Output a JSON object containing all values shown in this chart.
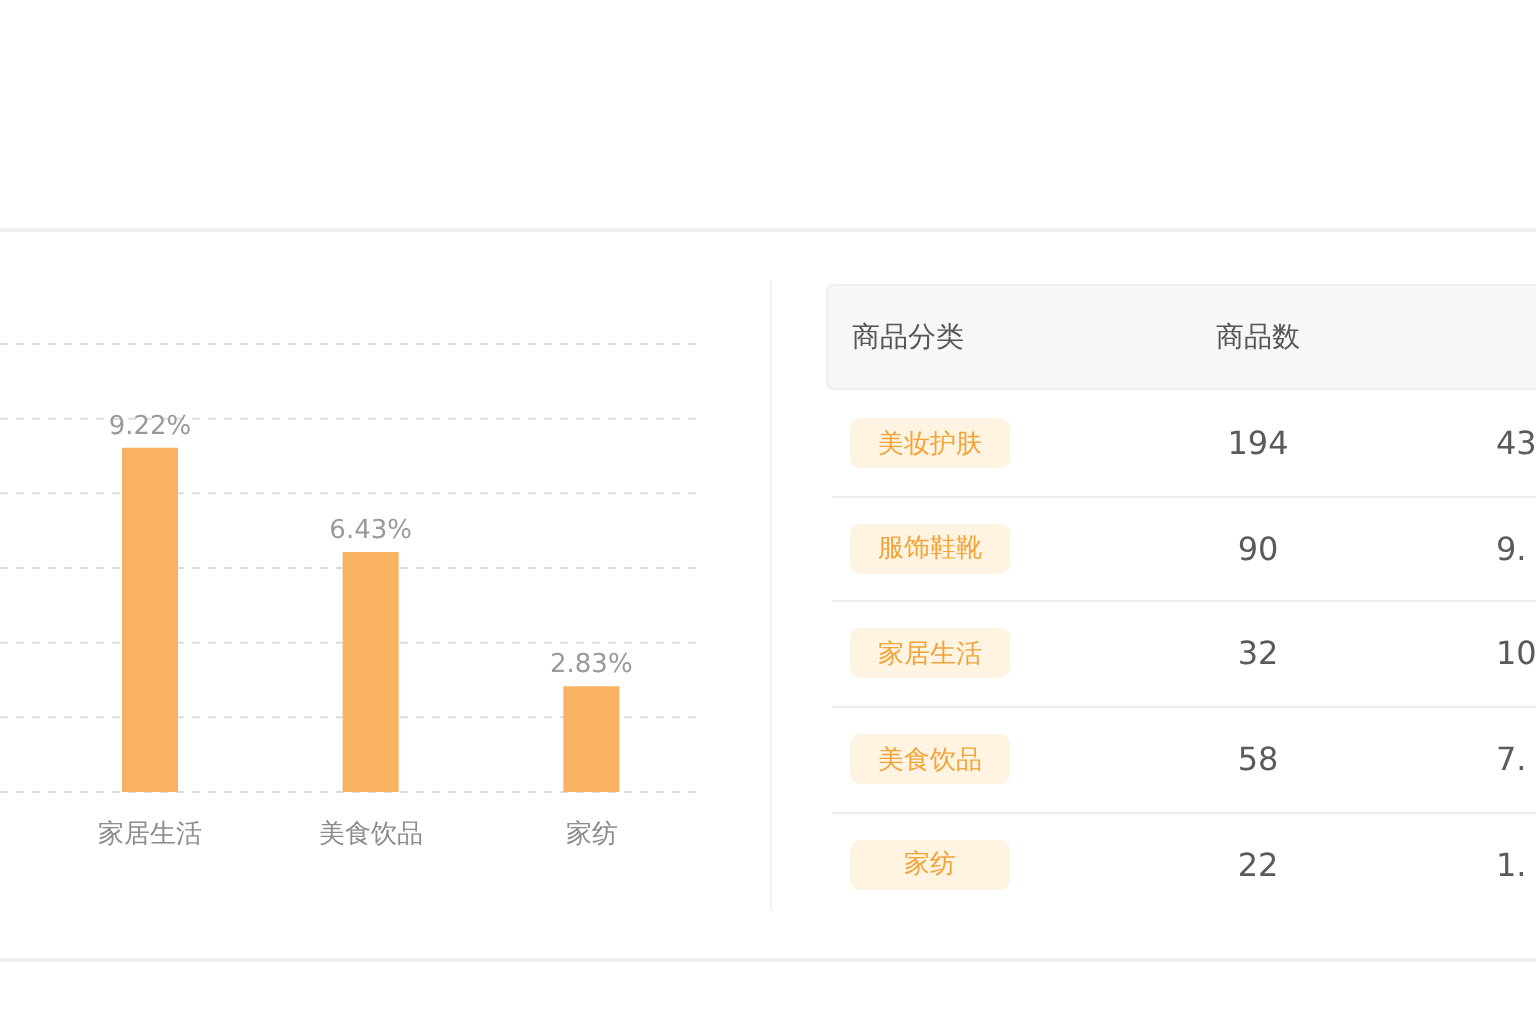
{
  "chart_data": [
    {
      "type": "bar",
      "categories": [
        "家居生活",
        "美食饮品",
        "家纺"
      ],
      "values": [
        9.22,
        6.43,
        2.83
      ],
      "value_labels": [
        "9.22%",
        "6.43%",
        "2.83%"
      ],
      "color": "#f9b162",
      "grid": "y",
      "tick_labels": "x"
    },
    {
      "type": "other",
      "ylabel": "商品分类",
      "categories": [
        "美妆护肤",
        "服饰鞋靴",
        "家居生活",
        "美食饮品",
        "家纺"
      ],
      "series": [
        {
          "name": "商品数",
          "values": [
            194,
            90,
            32,
            58,
            22
          ]
        }
      ],
      "data_labels": true,
      "annotations": [
        "43",
        "9.",
        "10",
        "7.",
        "1."
      ]
    }
  ]
}
